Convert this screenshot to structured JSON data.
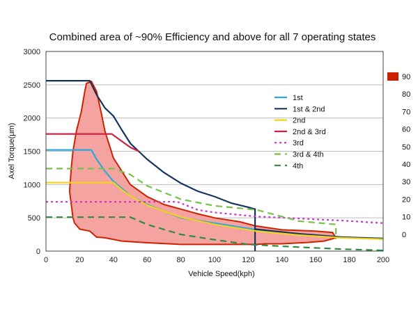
{
  "chart_data": {
    "type": "line",
    "title": "Combined area of ~90% Efficiency and above for all 7 operating states",
    "xlabel": "Vehicle Speed(kph)",
    "ylabel": "Axel Torque(μm)",
    "xlim": [
      0,
      200
    ],
    "ylim": [
      0,
      3000
    ],
    "x_ticks": [
      "0",
      "20",
      "40",
      "60",
      "80",
      "100",
      "120",
      "140",
      "160",
      "180",
      "200"
    ],
    "y_ticks": [
      "0",
      "500",
      "1000",
      "1500",
      "2000",
      "2500",
      "3000"
    ],
    "grid": "horizontal",
    "legend_position": "right",
    "region": {
      "label": "~90% efficiency",
      "color": "#f4a3a0",
      "edge_color": "#cc2200",
      "x": [
        27,
        24,
        23,
        21,
        18,
        16,
        15,
        14,
        15.5,
        16,
        17,
        20,
        26,
        30,
        35,
        45,
        60,
        80,
        100,
        115,
        122,
        125,
        130,
        140,
        155,
        165,
        172,
        170,
        160,
        140,
        124,
        115,
        100,
        90,
        70,
        60,
        50,
        45,
        40,
        35,
        33,
        30,
        27
      ],
      "y": [
        2550,
        2520,
        2400,
        2100,
        1800,
        1500,
        1250,
        900,
        600,
        500,
        420,
        330,
        300,
        210,
        200,
        150,
        125,
        100,
        100,
        100,
        100,
        100,
        110,
        110,
        130,
        150,
        200,
        280,
        300,
        320,
        380,
        440,
        500,
        560,
        700,
        820,
        1000,
        1200,
        1400,
        1800,
        2050,
        2400,
        2550
      ]
    },
    "series": [
      {
        "name": "1st",
        "color": "#29a7df",
        "dash": "solid",
        "x": [
          0,
          27,
          30,
          35,
          40,
          50,
          60,
          80,
          100,
          125,
          150,
          175,
          200
        ],
        "y": [
          1520,
          1520,
          1380,
          1200,
          1050,
          830,
          700,
          500,
          420,
          320,
          260,
          210,
          180
        ]
      },
      {
        "name": "1st & 2nd",
        "color": "#16335e",
        "dash": "solid",
        "x": [
          0,
          26,
          30,
          35,
          40,
          45,
          50,
          55,
          60,
          70,
          80,
          90,
          100,
          110,
          120,
          124,
          124,
          124,
          150,
          175,
          200
        ],
        "y": [
          2560,
          2560,
          2350,
          2150,
          2030,
          1820,
          1620,
          1500,
          1380,
          1180,
          1020,
          900,
          820,
          720,
          660,
          630,
          0,
          330,
          260,
          210,
          190
        ]
      },
      {
        "name": "2nd",
        "color": "#f2d21e",
        "dash": "solid",
        "x": [
          0,
          40,
          45,
          50,
          60,
          80,
          100,
          125,
          150,
          175,
          200
        ],
        "y": [
          1030,
          1030,
          920,
          830,
          690,
          510,
          400,
          300,
          240,
          200,
          180
        ]
      },
      {
        "name": "2nd & 3rd",
        "color": "#cc2244",
        "dash": "solid",
        "x": [
          0,
          39,
          45,
          50,
          55
        ],
        "y": [
          1760,
          1760,
          1650,
          1560,
          1500
        ]
      },
      {
        "name": "3rd",
        "color": "#cc33cc",
        "dash": "dotted",
        "x": [
          0,
          78,
          90,
          100,
          125,
          150,
          175,
          200
        ],
        "y": [
          740,
          740,
          620,
          580,
          520,
          490,
          460,
          420
        ]
      },
      {
        "name": "3rd & 4th",
        "color": "#77c24a",
        "dash": "dashed",
        "x": [
          0,
          40,
          50,
          60,
          80,
          100,
          125,
          150,
          172,
          172
        ],
        "y": [
          1240,
          1240,
          1150,
          980,
          780,
          680,
          620,
          450,
          400,
          180
        ]
      },
      {
        "name": "4th",
        "color": "#2e8b3e",
        "dash": "dashed",
        "x": [
          0,
          50,
          60,
          80,
          100,
          120,
          150,
          175,
          200
        ],
        "y": [
          510,
          510,
          400,
          250,
          170,
          100,
          60,
          30,
          10
        ]
      }
    ],
    "colorbar": {
      "color": "#cc2200",
      "ticks": [
        "90",
        "80",
        "70",
        "60",
        "50",
        "40",
        "30",
        "20",
        "10",
        "0"
      ]
    }
  }
}
